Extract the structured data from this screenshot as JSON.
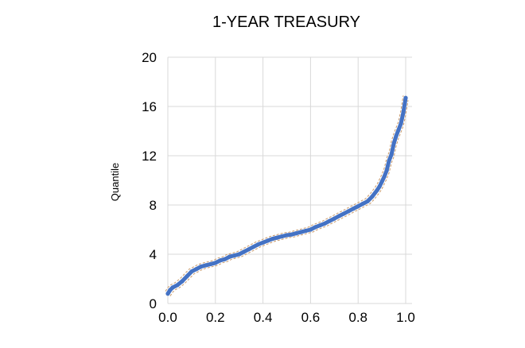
{
  "chart_data": {
    "type": "scatter",
    "title": "1-YEAR TREASURY",
    "xlabel": "",
    "ylabel": "Quantile",
    "xlim": [
      0.0,
      1.0
    ],
    "ylim": [
      0,
      20
    ],
    "xticks": [
      "0.0",
      "0.2",
      "0.4",
      "0.6",
      "0.8",
      "1.0"
    ],
    "yticks": [
      "0",
      "4",
      "8",
      "12",
      "16",
      "20"
    ],
    "grid": true,
    "colors": {
      "series": "#4472c4",
      "band": "#c99a6b"
    },
    "series": [
      {
        "x": [
          0.0,
          0.01,
          0.02,
          0.04,
          0.06,
          0.08,
          0.1,
          0.12,
          0.14,
          0.16,
          0.18,
          0.2,
          0.22,
          0.24,
          0.26,
          0.28,
          0.3,
          0.32,
          0.34,
          0.36,
          0.38,
          0.4,
          0.42,
          0.44,
          0.46,
          0.48,
          0.5,
          0.52,
          0.54,
          0.56,
          0.58,
          0.6,
          0.62,
          0.64,
          0.66,
          0.68,
          0.7,
          0.72,
          0.74,
          0.76,
          0.78,
          0.8,
          0.82,
          0.84,
          0.86,
          0.88,
          0.89,
          0.9,
          0.91,
          0.92,
          0.93,
          0.94,
          0.95,
          0.96,
          0.97,
          0.98,
          0.99,
          1.0
        ],
        "y": [
          0.8,
          1.1,
          1.3,
          1.5,
          1.8,
          2.2,
          2.6,
          2.8,
          3.0,
          3.1,
          3.2,
          3.3,
          3.5,
          3.6,
          3.8,
          3.9,
          4.0,
          4.2,
          4.4,
          4.6,
          4.8,
          4.95,
          5.1,
          5.25,
          5.35,
          5.45,
          5.55,
          5.6,
          5.7,
          5.8,
          5.9,
          6.0,
          6.2,
          6.35,
          6.5,
          6.7,
          6.9,
          7.1,
          7.3,
          7.5,
          7.7,
          7.9,
          8.1,
          8.3,
          8.7,
          9.2,
          9.5,
          9.9,
          10.3,
          10.8,
          11.6,
          12.1,
          13.0,
          13.6,
          14.1,
          14.6,
          15.5,
          16.7
        ]
      }
    ]
  }
}
